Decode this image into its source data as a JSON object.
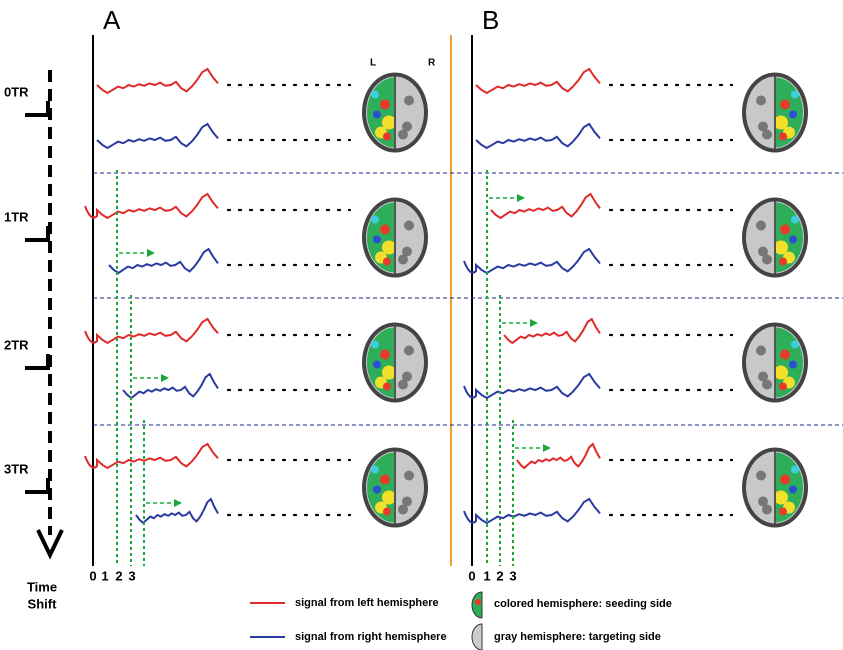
{
  "panels": [
    {
      "label": "A",
      "hemisphere_labels": [
        "L",
        "R"
      ],
      "axis_labels": [
        "0",
        "1",
        "2",
        "3"
      ]
    },
    {
      "label": "B",
      "axis_labels": [
        "0",
        "1",
        "2",
        "3"
      ]
    }
  ],
  "time_steps": [
    "0TR",
    "1TR",
    "2TR",
    "3TR"
  ],
  "time_axis_label": [
    "Time",
    "Shift"
  ],
  "legend": [
    "signal from left hemisphere",
    "signal from right hemisphere",
    "colored hemisphere: seeding side",
    "gray hemisphere: targeting side"
  ]
}
